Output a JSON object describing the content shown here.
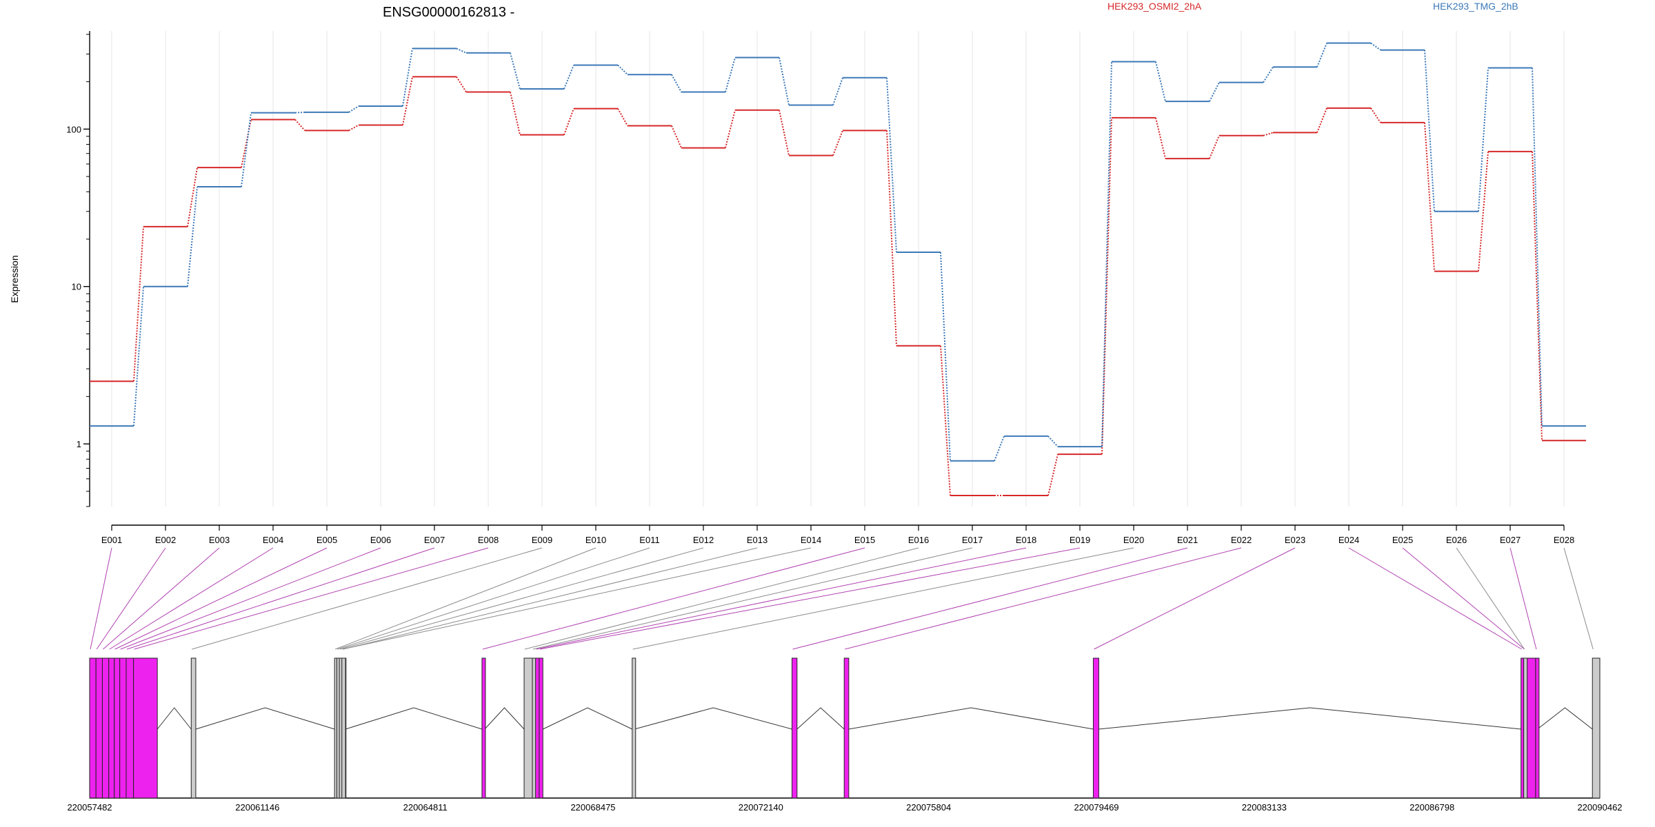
{
  "chart_data": {
    "type": "line",
    "title": "ENSG00000162813 -",
    "ylabel": "Expression",
    "xlabel": "",
    "y_scale": "log",
    "ylim": [
      0.4,
      420
    ],
    "y_ticks": [
      "1",
      "10",
      "100"
    ],
    "grid": true,
    "legend_placement": "top-right",
    "categories": [
      "E001",
      "E002",
      "E003",
      "E004",
      "E005",
      "E006",
      "E007",
      "E008",
      "E009",
      "E010",
      "E011",
      "E012",
      "E013",
      "E014",
      "E015",
      "E016",
      "E017",
      "E018",
      "E019",
      "E020",
      "E021",
      "E022",
      "E023",
      "E024",
      "E025",
      "E026",
      "E027",
      "E028"
    ],
    "series": [
      {
        "name": "HEK293_OSMI2_2hA",
        "color": "#d62728",
        "values": [
          2.5,
          24,
          57,
          115,
          98,
          106,
          215,
          172,
          92,
          135,
          105,
          76,
          132,
          68,
          98,
          4.2,
          0.47,
          0.47,
          0.86,
          118,
          65,
          91,
          95,
          136,
          110,
          12.5,
          72,
          1.05
        ]
      },
      {
        "name": "HEK293_TMG_2hB",
        "color": "#3b78b7",
        "values": [
          1.3,
          10,
          43,
          127,
          128,
          140,
          325,
          305,
          180,
          255,
          222,
          172,
          285,
          142,
          212,
          16.5,
          0.78,
          1.12,
          0.96,
          268,
          150,
          198,
          248,
          352,
          318,
          30,
          245,
          1.3
        ]
      }
    ],
    "gene_model": {
      "coordinate_labels": [
        "220057482",
        "220061146",
        "220064811",
        "220068475",
        "220072140",
        "220075804",
        "220079469",
        "220083133",
        "220086798",
        "220090462"
      ],
      "genomic_range": [
        220057482,
        220090462
      ],
      "exons": [
        {
          "id": "E001",
          "start": 220057482,
          "end": 220057620,
          "tested": true
        },
        {
          "id": "E002",
          "start": 220057620,
          "end": 220057760,
          "tested": true
        },
        {
          "id": "E003",
          "start": 220057760,
          "end": 220057900,
          "tested": true
        },
        {
          "id": "E004",
          "start": 220057900,
          "end": 220058020,
          "tested": true
        },
        {
          "id": "E005",
          "start": 220058020,
          "end": 220058140,
          "tested": true
        },
        {
          "id": "E006",
          "start": 220058140,
          "end": 220058280,
          "tested": true
        },
        {
          "id": "E007",
          "start": 220058280,
          "end": 220058440,
          "tested": true
        },
        {
          "id": "E008",
          "start": 220058440,
          "end": 220058960,
          "tested": true
        },
        {
          "id": "E009",
          "start": 220059700,
          "end": 220059800,
          "tested": false
        },
        {
          "id": "E010",
          "start": 220062830,
          "end": 220062880,
          "tested": false
        },
        {
          "id": "E011",
          "start": 220062880,
          "end": 220062935,
          "tested": false
        },
        {
          "id": "E012",
          "start": 220062935,
          "end": 220062990,
          "tested": false
        },
        {
          "id": "E013",
          "start": 220063005,
          "end": 220063020,
          "tested": false
        },
        {
          "id": "E014",
          "start": 220062990,
          "end": 220063070,
          "tested": false
        },
        {
          "id": "E015",
          "start": 220066050,
          "end": 220066110,
          "tested": true
        },
        {
          "id": "E016",
          "start": 220066970,
          "end": 220067150,
          "tested": false
        },
        {
          "id": "E017",
          "start": 220067150,
          "end": 220067220,
          "tested": false
        },
        {
          "id": "E018",
          "start": 220067220,
          "end": 220067300,
          "tested": true
        },
        {
          "id": "E019",
          "start": 220067300,
          "end": 220067380,
          "tested": true
        },
        {
          "id": "E020",
          "start": 220069330,
          "end": 220069380,
          "tested": false
        },
        {
          "id": "E021",
          "start": 220072820,
          "end": 220072930,
          "tested": true
        },
        {
          "id": "E022",
          "start": 220073960,
          "end": 220074060,
          "tested": true
        },
        {
          "id": "E023",
          "start": 220079400,
          "end": 220079520,
          "tested": true
        },
        {
          "id": "E024",
          "start": 220088740,
          "end": 220088800,
          "tested": true
        },
        {
          "id": "E025",
          "start": 220088800,
          "end": 220089060,
          "tested": true
        },
        {
          "id": "E026",
          "start": 220088800,
          "end": 220088830,
          "tested": false
        },
        {
          "id": "E027",
          "start": 220089060,
          "end": 220089100,
          "tested": true
        },
        {
          "id": "E028",
          "start": 220090300,
          "end": 220090462,
          "tested": false
        }
      ],
      "introns": [
        [
          220058960,
          220059700
        ],
        [
          220059800,
          220062830
        ],
        [
          220063070,
          220066050
        ],
        [
          220066110,
          220066970
        ],
        [
          220067380,
          220069330
        ],
        [
          220069380,
          220072820
        ],
        [
          220072930,
          220073960
        ],
        [
          220074060,
          220079400
        ],
        [
          220079520,
          220088740
        ],
        [
          220089100,
          220090300
        ]
      ],
      "colors": {
        "tested": "#ee22ee",
        "untested": "#cccccc",
        "tested_link": "#b040b0",
        "untested_link": "#8a8a8a"
      }
    }
  }
}
